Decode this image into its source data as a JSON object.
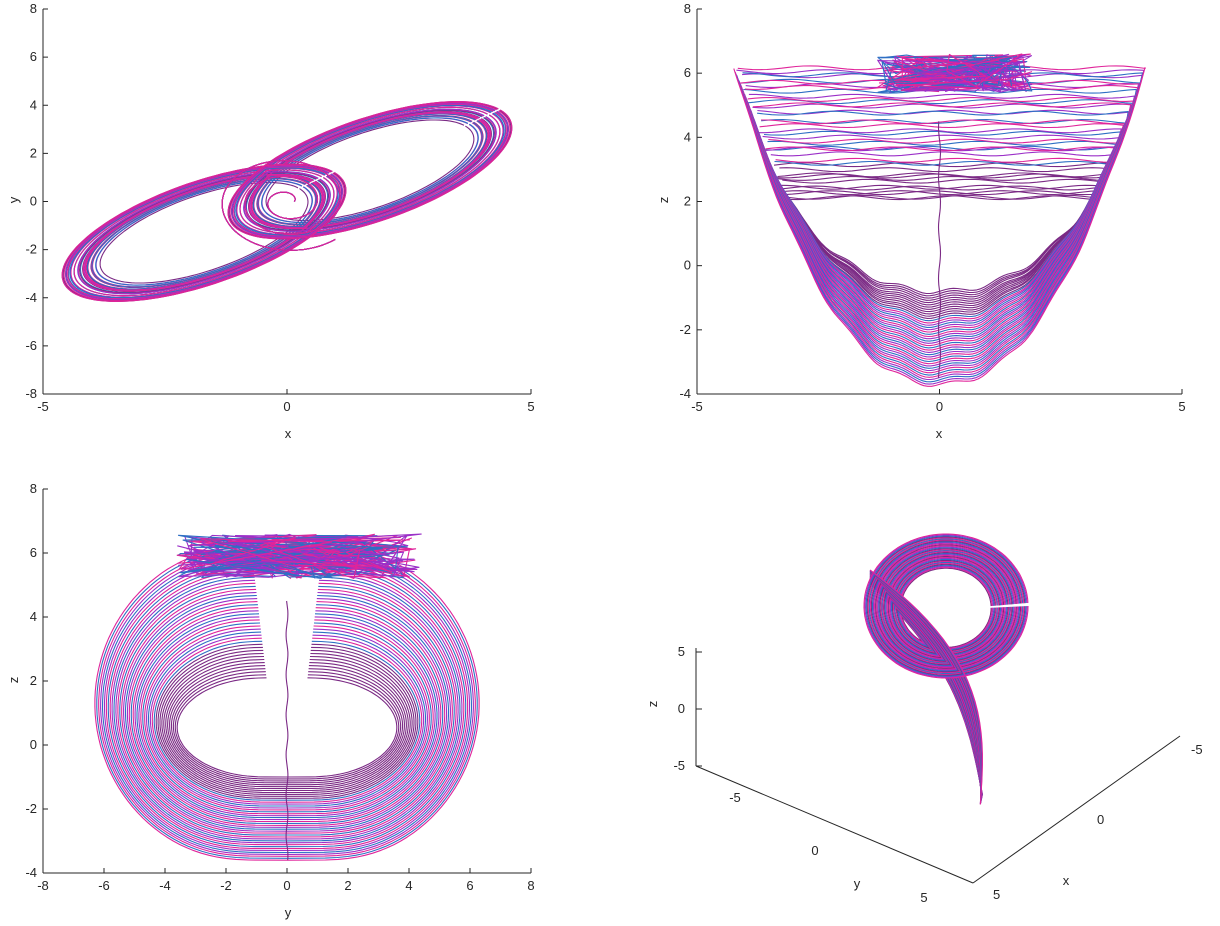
{
  "figure": {
    "series_colors": [
      "#7b2a85",
      "#e0249a",
      "#2e6fc4",
      "#9b30c8"
    ]
  },
  "chart_data": [
    {
      "type": "line",
      "id": "xy",
      "projection": "x-y phase portrait",
      "xlabel": "x",
      "ylabel": "y",
      "xlim": [
        -5,
        5
      ],
      "ylim": [
        -8,
        8
      ],
      "xticks": [
        -5,
        0,
        5
      ],
      "yticks": [
        -8,
        -6,
        -4,
        -2,
        0,
        2,
        4,
        6,
        8
      ],
      "grid": false
    },
    {
      "type": "line",
      "id": "xz",
      "projection": "x-z phase portrait",
      "xlabel": "x",
      "ylabel": "z",
      "xlim": [
        -5,
        5
      ],
      "ylim": [
        -4,
        8
      ],
      "xticks": [
        -5,
        0,
        5
      ],
      "yticks": [
        -4,
        -2,
        0,
        2,
        4,
        6,
        8
      ],
      "grid": false
    },
    {
      "type": "line",
      "id": "yz",
      "projection": "y-z phase portrait",
      "xlabel": "y",
      "ylabel": "z",
      "xlim": [
        -8,
        8
      ],
      "ylim": [
        -4,
        8
      ],
      "xticks": [
        -8,
        -6,
        -4,
        -2,
        0,
        2,
        4,
        6,
        8
      ],
      "yticks": [
        -4,
        -2,
        0,
        2,
        4,
        6,
        8
      ],
      "grid": false
    },
    {
      "type": "line",
      "id": "xyz",
      "projection": "3-D view",
      "xlabel": "x",
      "ylabel": "y",
      "zlabel": "z",
      "xticks": [
        -5,
        0,
        5
      ],
      "yticks": [
        -5,
        0,
        5
      ],
      "zticks": [
        -5,
        0,
        5
      ],
      "grid": false
    }
  ]
}
